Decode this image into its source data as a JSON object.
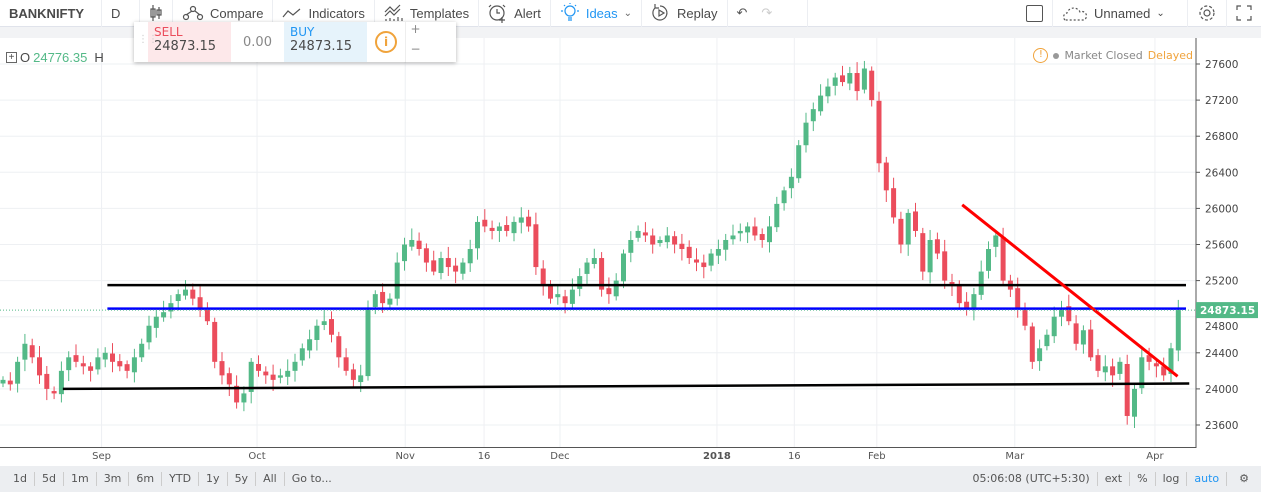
{
  "toolbar": {
    "symbol": "BANKNIFTY",
    "interval": "D",
    "compare": "Compare",
    "indicators": "Indicators",
    "templates": "Templates",
    "alert": "Alert",
    "ideas": "Ideas",
    "replay": "Replay",
    "layout": "Unnamed"
  },
  "legend": {
    "o_label": "O",
    "open": "24776.35",
    "h_label": "H"
  },
  "trade": {
    "sell_label": "SELL",
    "sell_price": "24873.15",
    "spread": "0.00",
    "buy_label": "BUY",
    "buy_price": "24873.15",
    "plus": "+",
    "minus": "−"
  },
  "status": {
    "market": "Market Closed",
    "delayed": "Delayed"
  },
  "colors": {
    "up": "#53b987",
    "down": "#eb4d5c",
    "accent": "#2196f3"
  },
  "chart_data": {
    "type": "candlestick",
    "symbol": "BANKNIFTY",
    "ylim": [
      23450,
      27800
    ],
    "y_ticks": [
      27600,
      27200,
      26800,
      26400,
      26000,
      25600,
      25200,
      24800,
      24400,
      24000,
      23600
    ],
    "last_price": "24873.15",
    "x_ticks": [
      {
        "label": "Sep",
        "i": 13.5
      },
      {
        "label": "Oct",
        "i": 34.8
      },
      {
        "label": "Nov",
        "i": 55.1
      },
      {
        "label": "16",
        "i": 65.9
      },
      {
        "label": "Dec",
        "i": 76.3
      },
      {
        "label": "2018",
        "i": 97.8
      },
      {
        "label": "16",
        "i": 108.4
      },
      {
        "label": "Feb",
        "i": 119.7
      },
      {
        "label": "Mar",
        "i": 138.6
      },
      {
        "label": "Apr",
        "i": 157.8
      }
    ],
    "closes": [
      24100,
      24050,
      24300,
      24500,
      24350,
      24150,
      24000,
      23950,
      24200,
      24350,
      24300,
      24250,
      24200,
      24350,
      24400,
      24300,
      24250,
      24200,
      24350,
      24500,
      24700,
      24800,
      24850,
      24950,
      25050,
      25100,
      25000,
      24900,
      24750,
      24300,
      24150,
      24050,
      23850,
      23950,
      24300,
      24200,
      24150,
      24100,
      24150,
      24200,
      24300,
      24450,
      24550,
      24700,
      24750,
      24600,
      24350,
      24200,
      24100,
      24150,
      24900,
      25050,
      24950,
      25000,
      25400,
      25600,
      25650,
      25550,
      25400,
      25300,
      25450,
      25350,
      25300,
      25400,
      25550,
      25850,
      25800,
      25750,
      25800,
      25750,
      25850,
      25900,
      25800,
      25350,
      25150,
      25000,
      25050,
      24950,
      25100,
      25250,
      25400,
      25450,
      25100,
      25050,
      25200,
      25500,
      25650,
      25750,
      25700,
      25600,
      25650,
      25700,
      25600,
      25550,
      25450,
      25400,
      25350,
      25500,
      25550,
      25650,
      25700,
      25750,
      25800,
      25700,
      25650,
      25800,
      26050,
      26200,
      26350,
      26700,
      26950,
      27100,
      27250,
      27350,
      27450,
      27400,
      27500,
      27300,
      27550,
      27200,
      26500,
      26200,
      25900,
      25600,
      25950,
      25750,
      25300,
      25650,
      25500,
      25200,
      25150,
      24950,
      24900,
      25050,
      25300,
      25550,
      25700,
      25200,
      25100,
      24900,
      24700,
      24300,
      24450,
      24600,
      24800,
      24900,
      24750,
      24500,
      24650,
      24350,
      24200,
      24250,
      24150,
      24300,
      23700,
      24000,
      24350,
      24300,
      24250,
      24150,
      24450,
      24873.15
    ],
    "drawings": [
      {
        "type": "horizontal",
        "color": "#000000",
        "price": 25150,
        "from_i": 14.3
      },
      {
        "type": "horizontal",
        "color": "#0000ff",
        "price": 24890,
        "from_i": 14.3
      },
      {
        "type": "trendline",
        "color": "#000000",
        "from": {
          "i": 8.2,
          "price": 24000
        },
        "to": {
          "i": 162.5,
          "price": 24060
        }
      },
      {
        "type": "trendline",
        "color": "#ff0000",
        "from": {
          "i": 131.4,
          "price": 26040
        },
        "to": {
          "i": 160.9,
          "price": 24140
        }
      }
    ]
  },
  "bottom": {
    "ranges": [
      "1d",
      "5d",
      "1m",
      "3m",
      "6m",
      "YTD",
      "1y",
      "5y",
      "All"
    ],
    "goto": "Go to...",
    "time": "05:06:08 (UTC+5:30)",
    "ext": "ext",
    "pct": "%",
    "log": "log",
    "auto": "auto"
  }
}
